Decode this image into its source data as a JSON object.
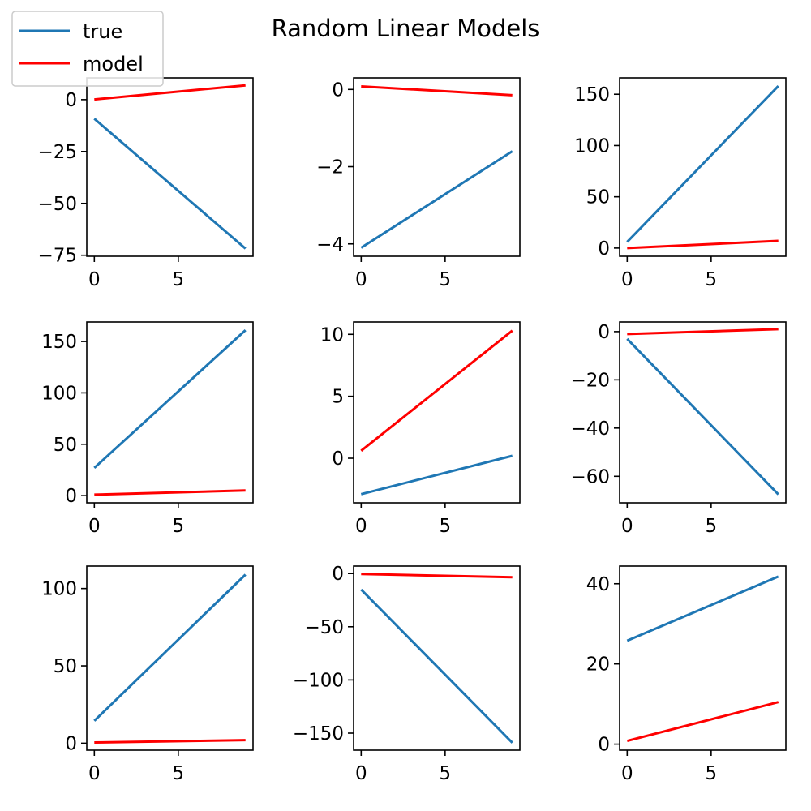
{
  "figure": {
    "title": "Random Linear Models",
    "legend": {
      "placement": "upper-left"
    }
  },
  "chart_data": [
    {
      "type": "line",
      "x": [
        0,
        9
      ],
      "series": [
        {
          "name": "true",
          "values": [
            -9.2,
            -71.8
          ]
        },
        {
          "name": "model",
          "values": [
            0.1,
            6.9
          ]
        }
      ],
      "ylim": [
        -75.5,
        10.5
      ],
      "xlim": [
        -0.45,
        9.45
      ],
      "yticks": [
        0,
        -25,
        -50,
        -75
      ],
      "xticks": [
        0,
        5
      ]
    },
    {
      "type": "line",
      "x": [
        0,
        9
      ],
      "series": [
        {
          "name": "true",
          "values": [
            -4.1,
            -1.6
          ]
        },
        {
          "name": "model",
          "values": [
            0.08,
            -0.15
          ]
        }
      ],
      "ylim": [
        -4.32,
        0.3
      ],
      "xlim": [
        -0.45,
        9.45
      ],
      "yticks": [
        0,
        -2,
        -4
      ],
      "xticks": [
        0,
        5
      ]
    },
    {
      "type": "line",
      "x": [
        0,
        9
      ],
      "series": [
        {
          "name": "true",
          "values": [
            6,
            158
          ]
        },
        {
          "name": "model",
          "values": [
            0,
            7
          ]
        }
      ],
      "ylim": [
        -8,
        166
      ],
      "xlim": [
        -0.45,
        9.45
      ],
      "yticks": [
        0,
        50,
        100,
        150
      ],
      "xticks": [
        0,
        5
      ]
    },
    {
      "type": "line",
      "x": [
        0,
        9
      ],
      "series": [
        {
          "name": "true",
          "values": [
            27,
            161
          ]
        },
        {
          "name": "model",
          "values": [
            1,
            5
          ]
        }
      ],
      "ylim": [
        -7,
        169
      ],
      "xlim": [
        -0.45,
        9.45
      ],
      "yticks": [
        0,
        50,
        100,
        150
      ],
      "xticks": [
        0,
        5
      ]
    },
    {
      "type": "line",
      "x": [
        0,
        9
      ],
      "series": [
        {
          "name": "true",
          "values": [
            -2.9,
            0.2
          ]
        },
        {
          "name": "model",
          "values": [
            0.6,
            10.3
          ]
        }
      ],
      "ylim": [
        -3.6,
        11.0
      ],
      "xlim": [
        -0.45,
        9.45
      ],
      "yticks": [
        0,
        5,
        10
      ],
      "xticks": [
        0,
        5
      ]
    },
    {
      "type": "line",
      "x": [
        0,
        9
      ],
      "series": [
        {
          "name": "true",
          "values": [
            -3,
            -67.5
          ]
        },
        {
          "name": "model",
          "values": [
            -1,
            1
          ]
        }
      ],
      "ylim": [
        -71,
        4
      ],
      "xlim": [
        -0.45,
        9.45
      ],
      "yticks": [
        0,
        -20,
        -40,
        -60
      ],
      "xticks": [
        0,
        5
      ]
    },
    {
      "type": "line",
      "x": [
        0,
        9
      ],
      "series": [
        {
          "name": "true",
          "values": [
            14.5,
            109
          ]
        },
        {
          "name": "model",
          "values": [
            0.5,
            2
          ]
        }
      ],
      "ylim": [
        -4.5,
        114.5
      ],
      "xlim": [
        -0.45,
        9.45
      ],
      "yticks": [
        0,
        50,
        100
      ],
      "xticks": [
        0,
        5
      ]
    },
    {
      "type": "line",
      "x": [
        0,
        9
      ],
      "series": [
        {
          "name": "true",
          "values": [
            -15,
            -159
          ]
        },
        {
          "name": "model",
          "values": [
            -0.5,
            -3.5
          ]
        }
      ],
      "ylim": [
        -166,
        7
      ],
      "xlim": [
        -0.45,
        9.45
      ],
      "yticks": [
        0,
        -50,
        -100,
        -150
      ],
      "xticks": [
        0,
        5
      ]
    },
    {
      "type": "line",
      "x": [
        0,
        9
      ],
      "series": [
        {
          "name": "true",
          "values": [
            25.8,
            41.8
          ]
        },
        {
          "name": "model",
          "values": [
            0.8,
            10.5
          ]
        }
      ],
      "ylim": [
        -1.5,
        44.4
      ],
      "xlim": [
        -0.45,
        9.45
      ],
      "yticks": [
        0,
        20,
        40
      ],
      "xticks": [
        0,
        5
      ]
    }
  ],
  "colors": {
    "true": "#1f77b4",
    "model": "#ff0000"
  }
}
